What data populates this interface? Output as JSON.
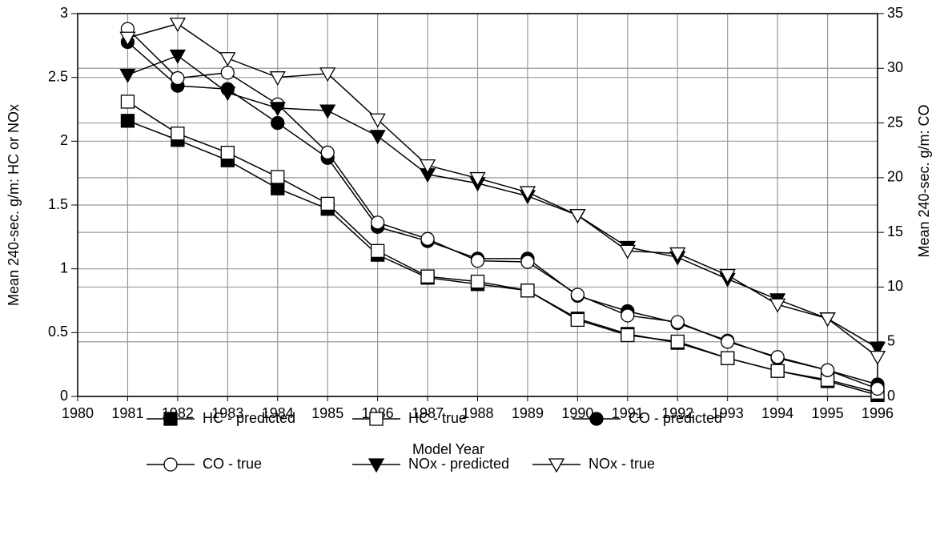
{
  "chart_data": {
    "type": "line",
    "xlabel": "Model Year",
    "ylabel": "Mean 240-sec. g/m: HC or NOx",
    "y2label": "Mean 240-sec. g/m: CO",
    "x": [
      1981,
      1982,
      1983,
      1984,
      1985,
      1986,
      1987,
      1988,
      1989,
      1990,
      1991,
      1992,
      1993,
      1994,
      1995,
      1996
    ],
    "xlim": [
      1980,
      1996
    ],
    "xticks": [
      1980,
      1981,
      1982,
      1983,
      1984,
      1985,
      1986,
      1987,
      1988,
      1989,
      1990,
      1991,
      1992,
      1993,
      1994,
      1995,
      1996
    ],
    "ylim": [
      0,
      3
    ],
    "yticks": [
      0,
      0.5,
      1,
      1.5,
      2,
      2.5,
      3
    ],
    "y2lim": [
      0,
      35
    ],
    "y2ticks": [
      0,
      5,
      10,
      15,
      20,
      25,
      30,
      35
    ],
    "grid": true,
    "legend": "bottom",
    "series": [
      {
        "name": "HC - predicted",
        "color": "#000000",
        "marker": "square",
        "filled": true,
        "values": [
          2.16,
          2.01,
          1.85,
          1.63,
          1.47,
          1.11,
          0.93,
          0.88,
          0.83,
          0.61,
          0.49,
          0.42,
          0.3,
          0.2,
          0.12,
          0.01
        ]
      },
      {
        "name": "HC - true",
        "color": "#000000",
        "marker": "square",
        "filled": false,
        "values": [
          2.31,
          2.06,
          1.91,
          1.72,
          1.51,
          1.14,
          0.94,
          0.9,
          0.83,
          0.6,
          0.48,
          0.43,
          0.3,
          0.2,
          0.13,
          0.03
        ]
      },
      {
        "name": "CO - predicted",
        "color": "#000000",
        "marker": "circle",
        "filled": true,
        "axis": "y2",
        "values": [
          32.4,
          28.4,
          28.1,
          25.0,
          21.8,
          15.5,
          14.2,
          12.6,
          12.6,
          9.2,
          7.8,
          6.7,
          5.1,
          3.5,
          2.4,
          1.1
        ]
      },
      {
        "name": "CO - true",
        "color": "#000000",
        "marker": "circle",
        "filled": false,
        "axis": "y2",
        "values": [
          33.6,
          29.1,
          29.6,
          26.7,
          22.3,
          15.9,
          14.4,
          12.4,
          12.3,
          9.3,
          7.4,
          6.8,
          5.0,
          3.6,
          2.4,
          0.7
        ]
      },
      {
        "name": "NOx - predicted",
        "color": "#000000",
        "marker": "triangle-down",
        "filled": true,
        "values": [
          2.52,
          2.67,
          2.38,
          2.26,
          2.24,
          2.04,
          1.74,
          1.67,
          1.57,
          1.42,
          1.17,
          1.09,
          0.92,
          0.76,
          0.61,
          0.38
        ]
      },
      {
        "name": "NOx - true",
        "color": "#000000",
        "marker": "triangle-down",
        "filled": false,
        "values": [
          2.81,
          2.92,
          2.65,
          2.5,
          2.53,
          2.17,
          1.81,
          1.71,
          1.6,
          1.42,
          1.14,
          1.12,
          0.95,
          0.72,
          0.61,
          0.31
        ]
      }
    ]
  }
}
